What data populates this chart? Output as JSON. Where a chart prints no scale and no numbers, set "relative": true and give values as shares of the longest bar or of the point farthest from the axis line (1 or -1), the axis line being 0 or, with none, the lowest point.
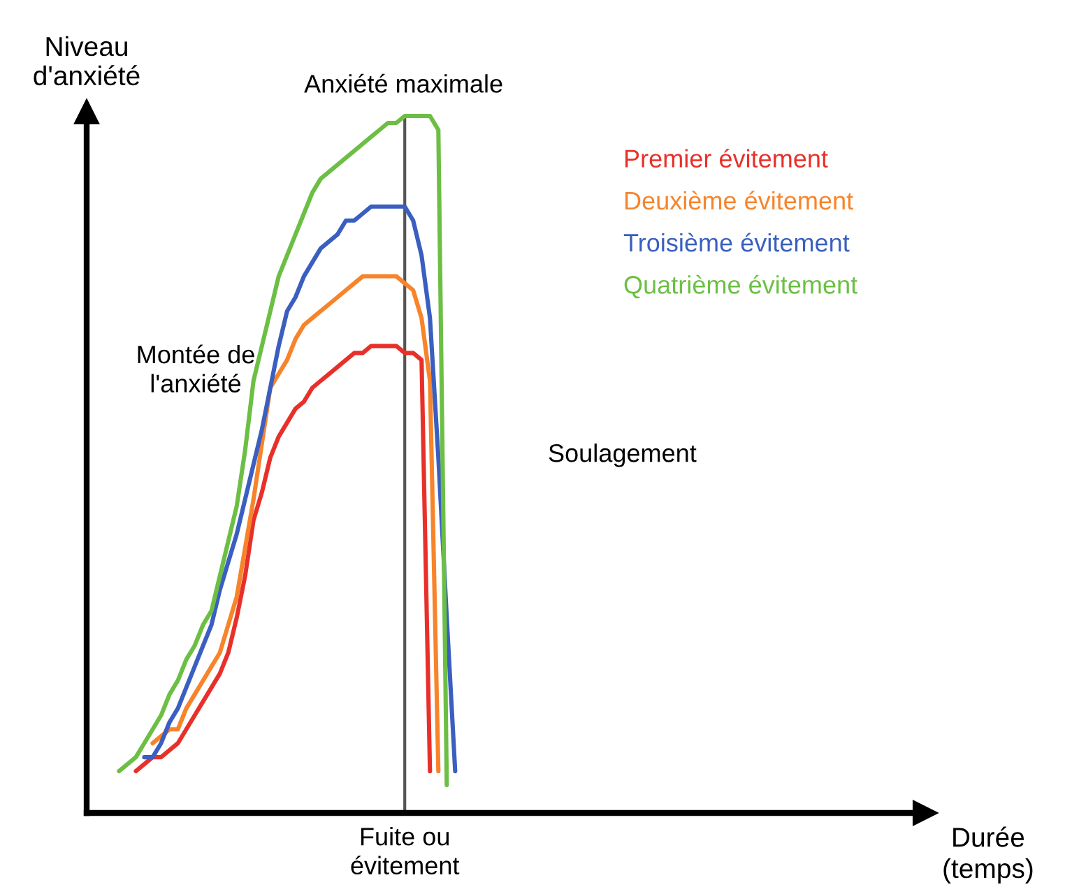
{
  "chart_data": {
    "type": "line",
    "relative": true,
    "ylabel": "Niveau\nd'anxiété",
    "marker": "none",
    "line_style": "solid",
    "categories": [
      null,
      null,
      null,
      null,
      null,
      null,
      null,
      null,
      null,
      null,
      null,
      null,
      null,
      null,
      null,
      null,
      null,
      null,
      null,
      null,
      null,
      null,
      null,
      null,
      null,
      null,
      null,
      null,
      null,
      null,
      null,
      null,
      null,
      null,
      null,
      null,
      null,
      null,
      null,
      null,
      null
    ],
    "series": [
      {
        "name": "Premier évitement",
        "color": "#e8302a",
        "values": [
          null,
          null,
          0.06,
          0.07,
          0.08,
          0.08,
          0.09,
          0.1,
          0.12,
          0.14,
          0.16,
          0.18,
          0.2,
          0.23,
          0.28,
          0.34,
          0.42,
          0.46,
          0.51,
          0.54,
          0.56,
          0.58,
          0.59,
          0.61,
          0.62,
          0.63,
          0.64,
          0.65,
          0.66,
          0.66,
          0.67,
          0.67,
          0.67,
          0.67,
          0.66,
          0.66,
          0.65,
          0.06,
          null,
          null,
          null
        ]
      },
      {
        "name": "Deuxième évitement",
        "color": "#f7842a",
        "values": [
          null,
          null,
          null,
          null,
          0.1,
          0.11,
          0.12,
          0.12,
          0.15,
          0.17,
          0.19,
          0.21,
          0.23,
          0.27,
          0.31,
          0.38,
          0.45,
          0.53,
          0.61,
          0.63,
          0.65,
          0.68,
          0.7,
          0.71,
          0.72,
          0.73,
          0.74,
          0.75,
          0.76,
          0.77,
          0.77,
          0.77,
          0.77,
          0.77,
          0.76,
          0.75,
          0.71,
          0.62,
          0.06,
          null,
          null
        ]
      },
      {
        "name": "Troisième évitement",
        "color": "#3a5fc0",
        "values": [
          null,
          null,
          null,
          0.08,
          0.08,
          0.1,
          0.13,
          0.15,
          0.18,
          0.21,
          0.24,
          0.27,
          0.32,
          0.36,
          0.4,
          0.45,
          0.5,
          0.55,
          0.61,
          0.67,
          0.72,
          0.74,
          0.77,
          0.79,
          0.81,
          0.82,
          0.83,
          0.85,
          0.85,
          0.86,
          0.87,
          0.87,
          0.87,
          0.87,
          0.87,
          0.85,
          0.8,
          0.71,
          0.51,
          0.28,
          0.06
        ]
      },
      {
        "name": "Quatrième évitement",
        "color": "#6cbf44",
        "values": [
          0.06,
          0.07,
          0.08,
          0.1,
          0.12,
          0.14,
          0.17,
          0.19,
          0.22,
          0.24,
          0.27,
          0.29,
          0.34,
          0.39,
          0.44,
          0.52,
          0.62,
          0.67,
          0.72,
          0.77,
          0.8,
          0.83,
          0.86,
          0.89,
          0.91,
          0.92,
          0.93,
          0.94,
          0.95,
          0.96,
          0.97,
          0.98,
          0.99,
          0.99,
          1.0,
          1.0,
          1.0,
          1.0,
          0.98,
          0.04,
          null
        ]
      }
    ],
    "ref_lines": [
      {
        "axis": "x",
        "label": "Fuite ou évitement",
        "color": "#555555",
        "line_style": "solid"
      }
    ],
    "annotations": [
      "Anxiété maximale",
      "Montée de\nl'anxiété",
      "Soulagement",
      "Durée\n(temps)"
    ]
  }
}
